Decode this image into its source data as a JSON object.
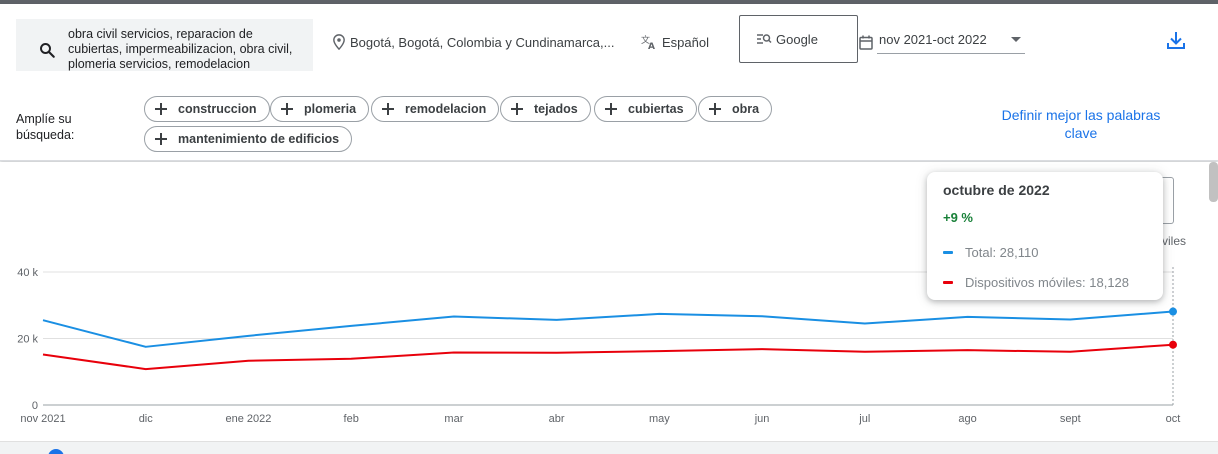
{
  "header": {
    "search_text": "obra civil servicios, reparacion de cubiertas, impermeabilizacion, obra civil, plomeria servicios, remodelacion",
    "location": "Bogotá, Bogotá, Colombia y Cundinamarca,...",
    "language": "Español",
    "source": "Google",
    "date_range": "nov 2021-oct 2022"
  },
  "expand": {
    "label": "Amplíe su búsqueda:",
    "chips": [
      "construccion",
      "plomeria",
      "remodelacion",
      "tejados",
      "cubiertas",
      "obra",
      "mantenimiento de edificios"
    ],
    "refine_link": "Definir mejor las palabras clave"
  },
  "legend_partial": "viles",
  "tooltip": {
    "title": "octubre de 2022",
    "change": "+9 %",
    "rows": [
      {
        "label": "Total: 28,110",
        "color": "#1a8fe3"
      },
      {
        "label": "Dispositivos móviles: 18,128",
        "color": "#e8000b"
      }
    ]
  },
  "chart_data": {
    "type": "line",
    "categories": [
      "nov 2021",
      "dic",
      "ene 2022",
      "feb",
      "mar",
      "abr",
      "may",
      "jun",
      "jul",
      "ago",
      "sept",
      "oct"
    ],
    "series": [
      {
        "name": "Total",
        "color": "#1a8fe3",
        "values": [
          25500,
          17500,
          20800,
          23800,
          26600,
          25600,
          27400,
          26700,
          24500,
          26500,
          25700,
          28110
        ]
      },
      {
        "name": "Dispositivos móviles",
        "color": "#e8000b",
        "values": [
          15200,
          10800,
          13300,
          13900,
          15800,
          15700,
          16200,
          16800,
          16000,
          16500,
          16000,
          18128
        ]
      }
    ],
    "y_ticks": [
      "0",
      "20 k",
      "40 k"
    ],
    "ylim": [
      0,
      40000
    ],
    "grid": true
  },
  "colors": {
    "accent": "#1a73e8",
    "positive": "#188038"
  }
}
